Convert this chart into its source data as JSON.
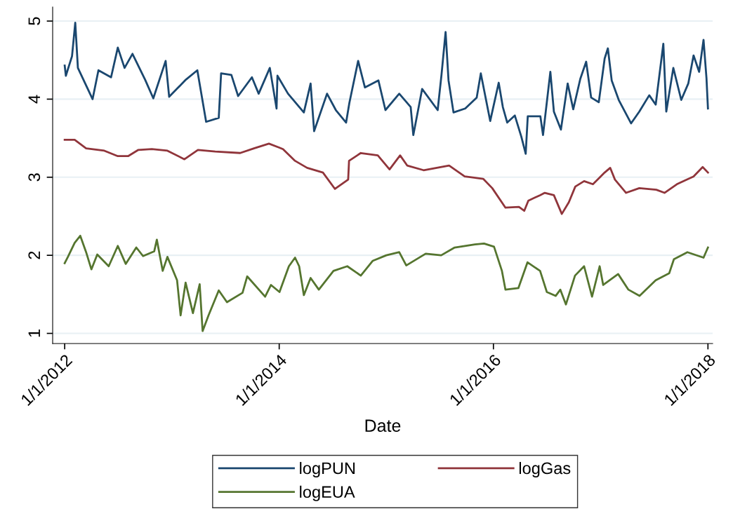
{
  "chart_data": {
    "type": "line",
    "xlabel": "Date",
    "xlim": [
      "2011-11-21",
      "2018-01-17"
    ],
    "xticks": [
      {
        "value": "2012-01-01",
        "label": "1/1/2012"
      },
      {
        "value": "2014-01-01",
        "label": "1/1/2014"
      },
      {
        "value": "2016-01-01",
        "label": "1/1/2016"
      },
      {
        "value": "2018-01-01",
        "label": "1/1/2018"
      }
    ],
    "ylim": [
      0.87,
      5.18
    ],
    "yticks": [
      1,
      2,
      3,
      4,
      5
    ],
    "grid": "y",
    "legend": "bottom",
    "line_style": "solid",
    "marker": "none",
    "series": [
      {
        "name": "logPUN",
        "color": "#1a476f",
        "x": [
          "2012-01-01",
          "2012-01-05",
          "2012-01-26",
          "2012-02-06",
          "2012-02-15",
          "2012-04-05",
          "2012-04-25",
          "2012-06-07",
          "2012-06-30",
          "2012-07-23",
          "2012-08-19",
          "2012-10-01",
          "2012-10-29",
          "2012-12-10",
          "2012-12-22",
          "2013-02-17",
          "2013-03-28",
          "2013-04-27",
          "2013-06-09",
          "2013-06-17",
          "2013-07-22",
          "2013-08-14",
          "2013-09-30",
          "2013-10-23",
          "2013-11-30",
          "2013-12-23",
          "2013-12-26",
          "2014-01-31",
          "2014-03-26",
          "2014-04-18",
          "2014-04-30",
          "2014-06-13",
          "2014-07-13",
          "2014-08-17",
          "2014-08-28",
          "2014-09-27",
          "2014-10-20",
          "2014-12-05",
          "2014-12-29",
          "2015-02-14",
          "2015-03-25",
          "2015-04-03",
          "2015-05-03",
          "2015-06-25",
          "2015-07-08",
          "2015-07-22",
          "2015-08-01",
          "2015-08-18",
          "2015-09-27",
          "2015-11-05",
          "2015-11-19",
          "2015-12-21",
          "2016-01-19",
          "2016-02-02",
          "2016-02-17",
          "2016-03-14",
          "2016-04-05",
          "2016-04-20",
          "2016-04-27",
          "2016-06-09",
          "2016-06-18",
          "2016-07-13",
          "2016-07-25",
          "2016-08-18",
          "2016-09-10",
          "2016-09-29",
          "2016-10-23",
          "2016-11-12",
          "2016-11-29",
          "2016-12-25",
          "2017-01-14",
          "2017-01-25",
          "2017-02-07",
          "2017-03-03",
          "2017-04-14",
          "2017-05-12",
          "2017-06-15",
          "2017-07-07",
          "2017-08-02",
          "2017-08-12",
          "2017-09-05",
          "2017-10-02",
          "2017-10-26",
          "2017-11-13",
          "2017-12-02",
          "2017-12-17",
          "2017-12-27",
          "2018-01-01"
        ],
        "values": [
          4.43,
          4.3,
          4.55,
          4.98,
          4.4,
          4.0,
          4.37,
          4.28,
          4.66,
          4.4,
          4.58,
          4.25,
          4.01,
          4.49,
          4.03,
          4.25,
          4.37,
          3.71,
          3.76,
          4.33,
          4.31,
          4.04,
          4.28,
          4.07,
          4.4,
          3.88,
          4.3,
          4.07,
          3.83,
          4.2,
          3.59,
          4.07,
          3.86,
          3.7,
          3.95,
          4.49,
          4.15,
          4.24,
          3.86,
          4.07,
          3.9,
          3.54,
          4.13,
          3.86,
          4.31,
          4.86,
          4.24,
          3.83,
          3.88,
          4.02,
          4.33,
          3.72,
          4.21,
          3.9,
          3.7,
          3.79,
          3.52,
          3.3,
          3.78,
          3.78,
          3.54,
          4.35,
          3.84,
          3.61,
          4.2,
          3.87,
          4.26,
          4.48,
          4.02,
          3.96,
          4.52,
          4.65,
          4.24,
          3.99,
          3.69,
          3.84,
          4.05,
          3.93,
          4.71,
          3.84,
          4.4,
          3.99,
          4.2,
          4.56,
          4.35,
          4.76,
          4.27,
          3.88
        ]
      },
      {
        "name": "logGas",
        "color": "#90353b",
        "x": [
          "2012-01-01",
          "2012-02-04",
          "2012-03-14",
          "2012-05-15",
          "2012-06-30",
          "2012-08-04",
          "2012-09-08",
          "2012-10-24",
          "2012-12-16",
          "2013-02-12",
          "2013-03-30",
          "2013-05-28",
          "2013-08-21",
          "2013-10-07",
          "2013-11-27",
          "2014-01-01",
          "2014-01-14",
          "2014-02-24",
          "2014-04-06",
          "2014-05-30",
          "2014-07-10",
          "2014-08-24",
          "2014-08-27",
          "2014-10-06",
          "2014-12-03",
          "2015-01-12",
          "2015-02-17",
          "2015-03-13",
          "2015-05-08",
          "2015-08-03",
          "2015-09-25",
          "2015-11-27",
          "2015-12-28",
          "2016-02-11",
          "2016-03-28",
          "2016-04-15",
          "2016-04-29",
          "2016-06-08",
          "2016-06-24",
          "2016-07-25",
          "2016-08-21",
          "2016-09-14",
          "2016-10-06",
          "2016-11-05",
          "2016-12-05",
          "2017-01-14",
          "2017-02-02",
          "2017-02-18",
          "2017-03-28",
          "2017-05-12",
          "2017-07-09",
          "2017-08-06",
          "2017-09-17",
          "2017-11-13",
          "2017-12-14",
          "2018-01-01"
        ],
        "values": [
          3.48,
          3.48,
          3.37,
          3.34,
          3.27,
          3.27,
          3.35,
          3.36,
          3.34,
          3.23,
          3.35,
          3.33,
          3.31,
          3.37,
          3.43,
          3.38,
          3.36,
          3.21,
          3.12,
          3.06,
          2.85,
          2.97,
          3.21,
          3.31,
          3.28,
          3.1,
          3.28,
          3.15,
          3.09,
          3.15,
          3.01,
          2.98,
          2.86,
          2.61,
          2.62,
          2.57,
          2.7,
          2.77,
          2.8,
          2.77,
          2.53,
          2.68,
          2.88,
          2.95,
          2.91,
          3.06,
          3.12,
          2.97,
          2.8,
          2.86,
          2.84,
          2.8,
          2.91,
          3.01,
          3.13,
          3.06
        ]
      },
      {
        "name": "logEUA",
        "color": "#55752f",
        "x": [
          "2012-01-01",
          "2012-01-12",
          "2012-02-04",
          "2012-02-23",
          "2012-03-14",
          "2012-04-01",
          "2012-04-21",
          "2012-05-30",
          "2012-06-30",
          "2012-07-27",
          "2012-09-01",
          "2012-09-24",
          "2012-11-01",
          "2012-11-10",
          "2012-11-30",
          "2012-12-16",
          "2013-01-18",
          "2013-01-30",
          "2013-02-16",
          "2013-03-13",
          "2013-04-05",
          "2013-04-15",
          "2013-05-05",
          "2013-06-09",
          "2013-07-07",
          "2013-08-29",
          "2013-09-14",
          "2013-11-14",
          "2013-12-04",
          "2014-01-02",
          "2014-02-03",
          "2014-02-24",
          "2014-03-10",
          "2014-03-26",
          "2014-04-18",
          "2014-05-16",
          "2014-07-05",
          "2014-08-21",
          "2014-10-06",
          "2014-11-16",
          "2015-01-01",
          "2015-02-14",
          "2015-03-10",
          "2015-05-15",
          "2015-07-07",
          "2015-08-22",
          "2015-10-30",
          "2015-11-30",
          "2016-01-03",
          "2016-01-30",
          "2016-02-11",
          "2016-03-26",
          "2016-04-26",
          "2016-06-08",
          "2016-07-01",
          "2016-07-31",
          "2016-08-16",
          "2016-09-04",
          "2016-10-05",
          "2016-11-05",
          "2016-12-02",
          "2016-12-28",
          "2017-01-09",
          "2017-03-01",
          "2017-04-05",
          "2017-05-13",
          "2017-07-07",
          "2017-08-22",
          "2017-09-07",
          "2017-10-23",
          "2017-12-17",
          "2018-01-01"
        ],
        "values": [
          1.9,
          1.98,
          2.16,
          2.25,
          2.04,
          1.82,
          2.01,
          1.86,
          2.12,
          1.89,
          2.1,
          1.99,
          2.05,
          2.2,
          1.8,
          1.98,
          1.68,
          1.23,
          1.65,
          1.26,
          1.63,
          1.03,
          1.23,
          1.55,
          1.4,
          1.52,
          1.73,
          1.47,
          1.62,
          1.53,
          1.86,
          1.97,
          1.86,
          1.49,
          1.71,
          1.56,
          1.8,
          1.86,
          1.74,
          1.93,
          2.0,
          2.04,
          1.87,
          2.02,
          2.0,
          2.1,
          2.14,
          2.15,
          2.11,
          1.8,
          1.56,
          1.58,
          1.91,
          1.8,
          1.53,
          1.48,
          1.56,
          1.37,
          1.74,
          1.86,
          1.47,
          1.86,
          1.62,
          1.76,
          1.56,
          1.48,
          1.68,
          1.77,
          1.95,
          2.04,
          1.97,
          2.1
        ]
      }
    ]
  }
}
